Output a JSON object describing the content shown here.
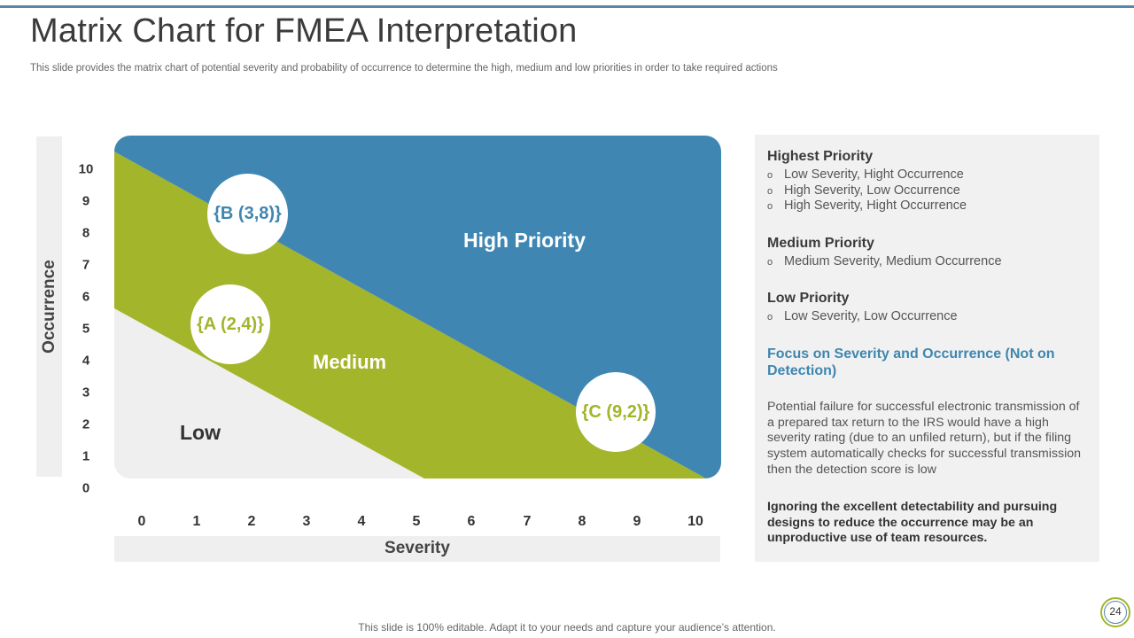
{
  "slide": {
    "title": "Matrix Chart for FMEA Interpretation",
    "subtitle": "This slide provides the matrix chart of potential severity and probability of occurrence to determine the high, medium and low priorities in order to take required actions",
    "footer": "This slide is 100% editable. Adapt it to your needs and capture your audience’s attention.",
    "page_number": "24"
  },
  "colors": {
    "high": "#3f87b2",
    "medium": "#a3b52a",
    "low": "#efefef",
    "accent": "#5b87a6"
  },
  "chart_data": {
    "type": "matrix",
    "xlabel": "Severity",
    "ylabel": "Occurrence",
    "x_ticks": [
      "0",
      "1",
      "2",
      "3",
      "4",
      "5",
      "6",
      "7",
      "8",
      "9",
      "10"
    ],
    "y_ticks": [
      "10",
      "9",
      "8",
      "7",
      "6",
      "5",
      "4",
      "3",
      "2",
      "1",
      "0"
    ],
    "zones": [
      {
        "name": "high",
        "label": "High Priority"
      },
      {
        "name": "medium",
        "label": "Medium"
      },
      {
        "name": "low",
        "label": "Low"
      }
    ],
    "points": [
      {
        "id": "B",
        "label": "{B (3,8)}",
        "severity": 3,
        "occurrence": 8
      },
      {
        "id": "A",
        "label": "{A (2,4)}",
        "severity": 2,
        "occurrence": 4
      },
      {
        "id": "C",
        "label": "{C (9,2)}",
        "severity": 9,
        "occurrence": 2
      }
    ]
  },
  "panel": {
    "highest_title": "Highest Priority",
    "highest_items": [
      "Low Severity, Hight Occurrence",
      "High Severity, Low Occurrence",
      "High Severity, Hight Occurrence"
    ],
    "medium_title": "Medium Priority",
    "medium_items": [
      "Medium Severity, Medium Occurrence"
    ],
    "low_title": "Low Priority",
    "low_items": [
      "Low Severity, Low Occurrence"
    ],
    "bullet_mark": "o",
    "focus_title": "Focus on Severity and Occurrence (Not on Detection)",
    "body": "Potential failure for successful electronic transmission of a prepared tax return to the IRS would have a high severity rating (due to an unfiled return), but if the filing system automatically checks for successful transmission then the detection score is low",
    "bold_note": "Ignoring the excellent detectability and pursuing designs to reduce the occurrence may be an unproductive use of team resources."
  }
}
